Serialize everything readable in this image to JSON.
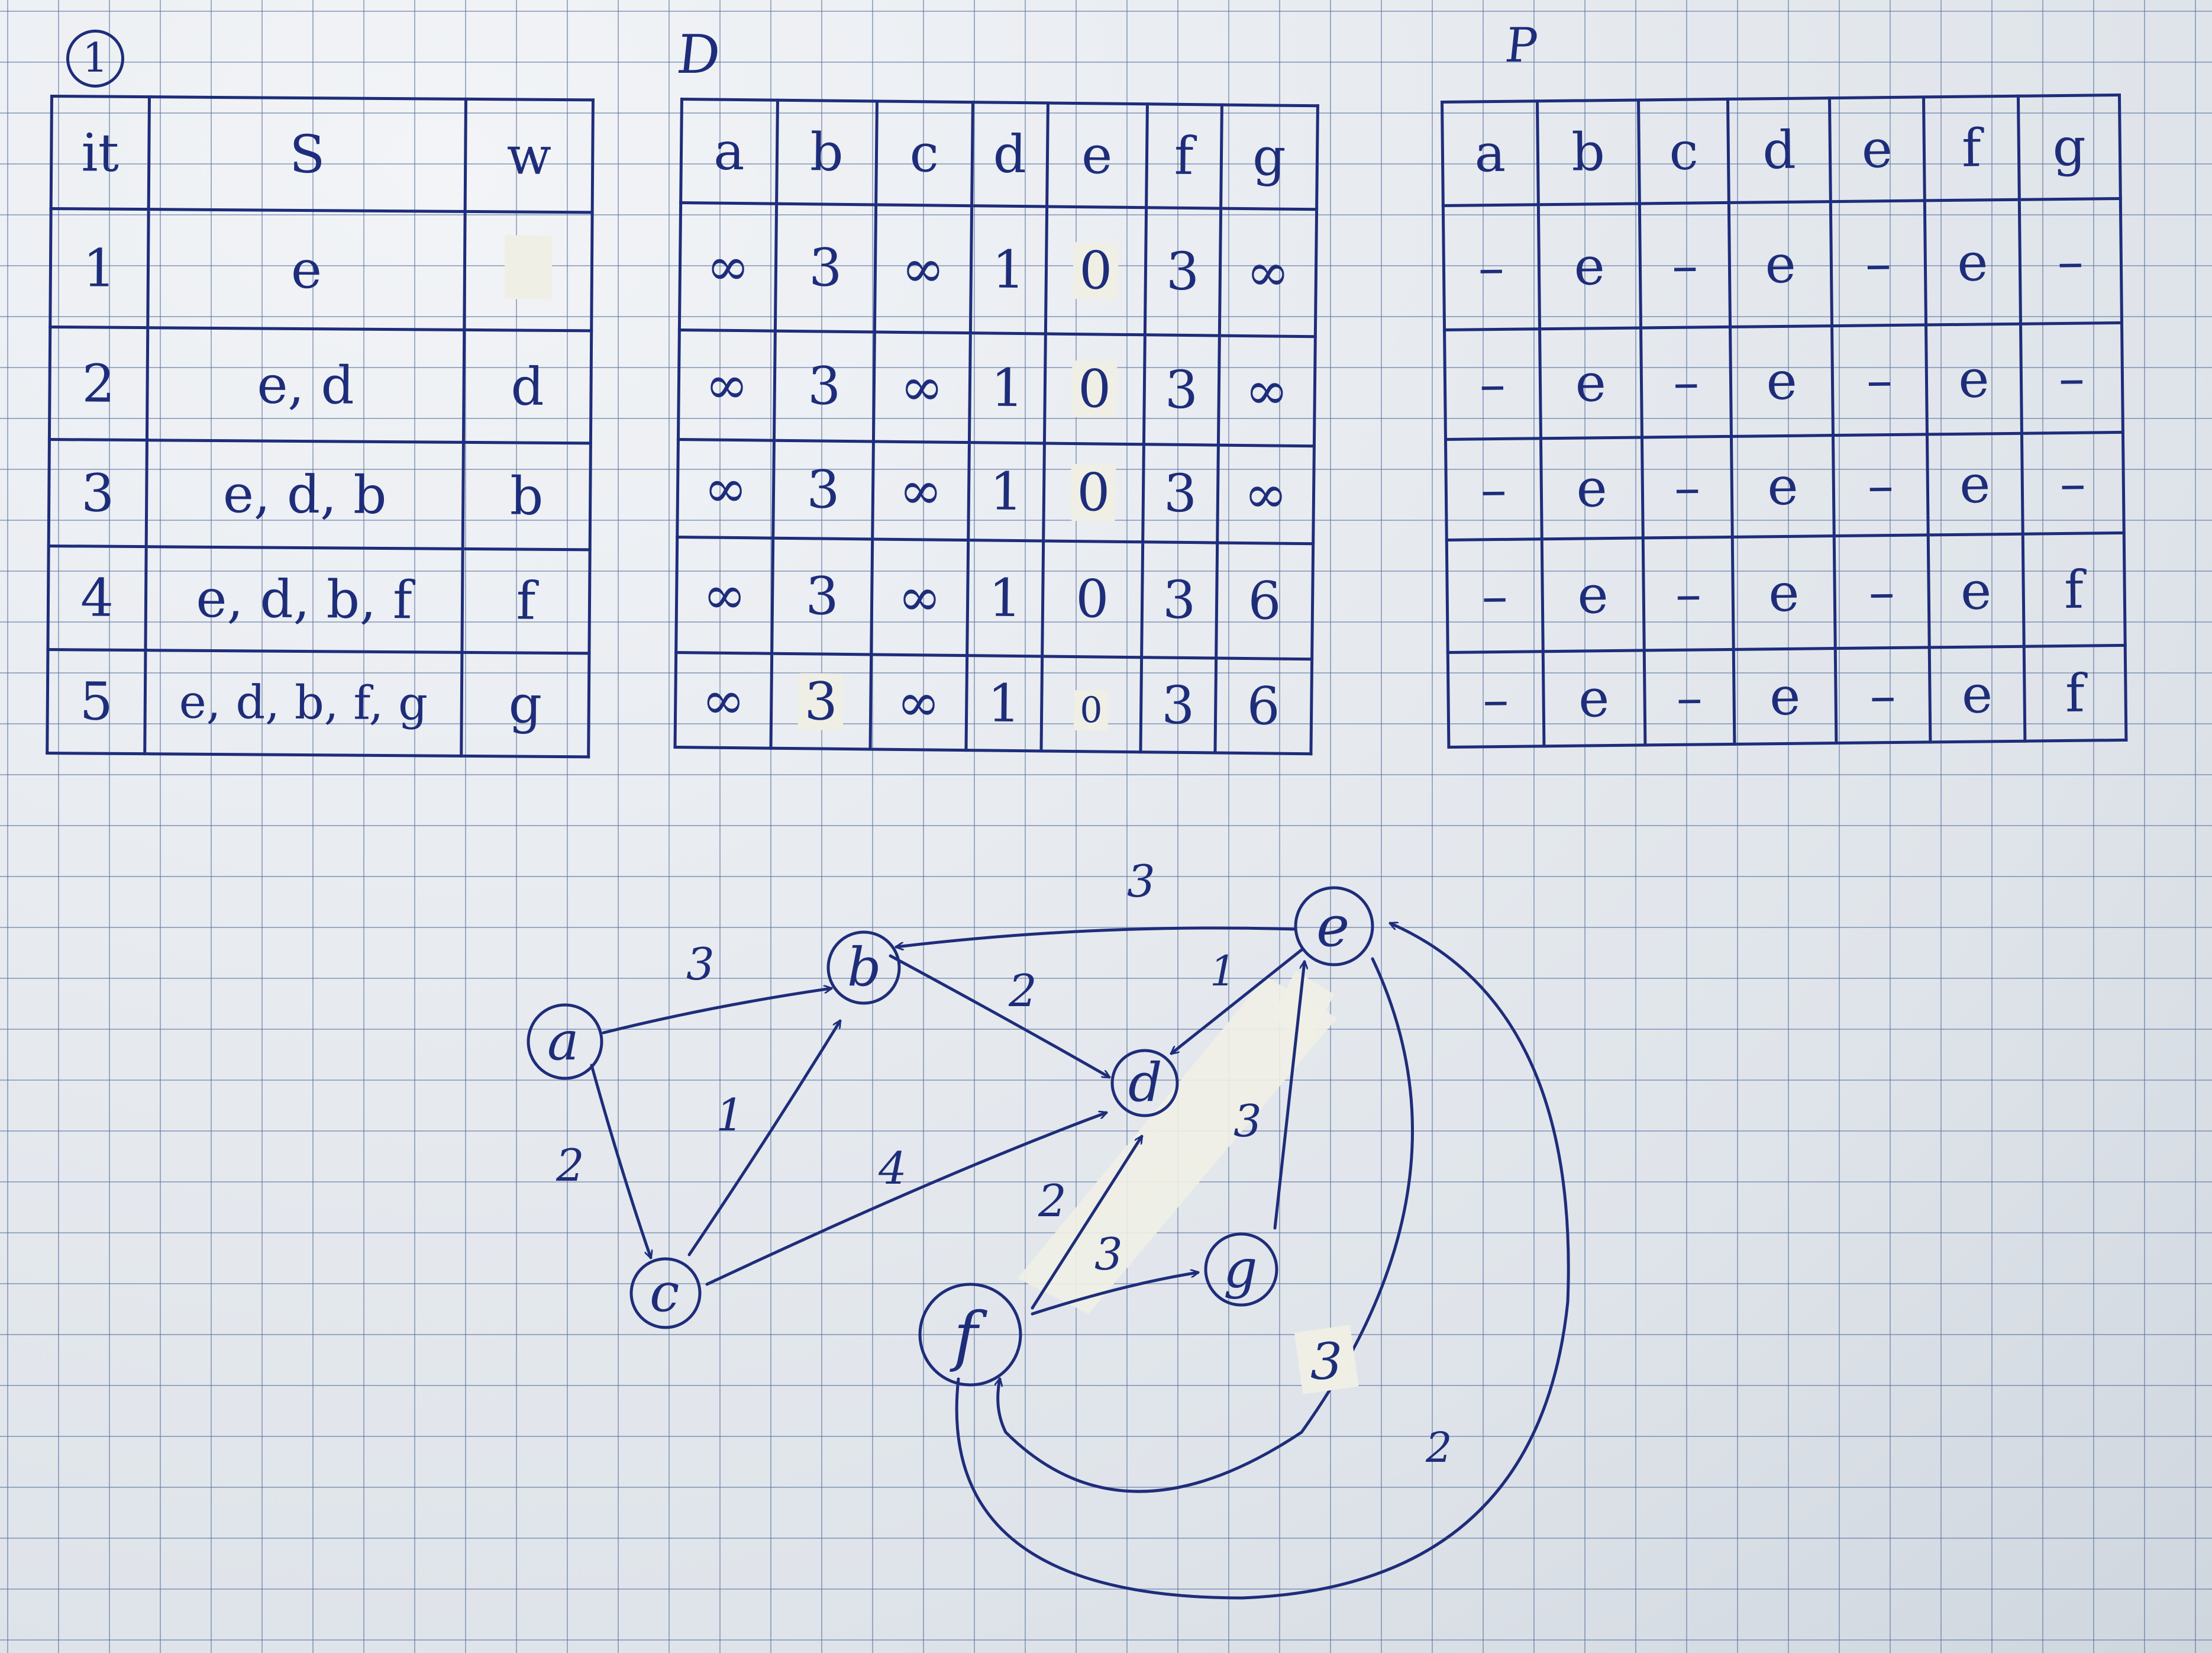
{
  "step_marker": "1",
  "table_s": {
    "headers": [
      "it",
      "S",
      "w"
    ],
    "rows": [
      [
        "1",
        "e",
        ""
      ],
      [
        "2",
        "e, d",
        "d"
      ],
      [
        "3",
        "e, d, b",
        "b"
      ],
      [
        "4",
        "e, d, b, f",
        "f"
      ],
      [
        "5",
        "e, d, b, f, g",
        "g"
      ]
    ]
  },
  "table_d": {
    "title": "D",
    "headers": [
      "a",
      "b",
      "c",
      "d",
      "e",
      "f",
      "g"
    ],
    "rows": [
      [
        "∞",
        "3",
        "∞",
        "1",
        "0",
        "3",
        "∞"
      ],
      [
        "∞",
        "3",
        "∞",
        "1",
        "0",
        "3",
        "∞"
      ],
      [
        "∞",
        "3",
        "∞",
        "1",
        "0",
        "3",
        "∞"
      ],
      [
        "∞",
        "3",
        "∞",
        "1",
        "0",
        "3",
        "6"
      ],
      [
        "∞",
        "3",
        "∞",
        "1",
        "0",
        "3",
        "6"
      ]
    ]
  },
  "table_p": {
    "title": "P",
    "headers": [
      "a",
      "b",
      "c",
      "d",
      "e",
      "f",
      "g"
    ],
    "rows": [
      [
        "–",
        "e",
        "–",
        "e",
        "–",
        "e",
        "–"
      ],
      [
        "–",
        "e",
        "–",
        "e",
        "–",
        "e",
        "–"
      ],
      [
        "–",
        "e",
        "–",
        "e",
        "–",
        "e",
        "–"
      ],
      [
        "–",
        "e",
        "–",
        "e",
        "–",
        "e",
        "f"
      ],
      [
        "–",
        "e",
        "–",
        "e",
        "–",
        "e",
        "f"
      ]
    ]
  },
  "graph": {
    "nodes": [
      "a",
      "b",
      "c",
      "d",
      "e",
      "f",
      "g"
    ],
    "edges": [
      {
        "from": "a",
        "to": "b",
        "weight": "3"
      },
      {
        "from": "a",
        "to": "c",
        "weight": "2"
      },
      {
        "from": "c",
        "to": "b",
        "weight": "1"
      },
      {
        "from": "c",
        "to": "d",
        "weight": "4"
      },
      {
        "from": "b",
        "to": "d",
        "weight": "2"
      },
      {
        "from": "e",
        "to": "b",
        "weight": "3"
      },
      {
        "from": "e",
        "to": "d",
        "weight": "1"
      },
      {
        "from": "f",
        "to": "d",
        "weight": "2"
      },
      {
        "from": "f",
        "to": "g",
        "weight": "3"
      },
      {
        "from": "g",
        "to": "e",
        "weight": "3"
      },
      {
        "from": "e",
        "to": "f",
        "weight": "3"
      },
      {
        "from": "f",
        "to": "e",
        "weight": "2"
      }
    ]
  },
  "colors": {
    "ink": "#1e2d7a",
    "paper": "#e4e9ef",
    "grid": "#5a73a0",
    "tape": "#efefe6"
  }
}
